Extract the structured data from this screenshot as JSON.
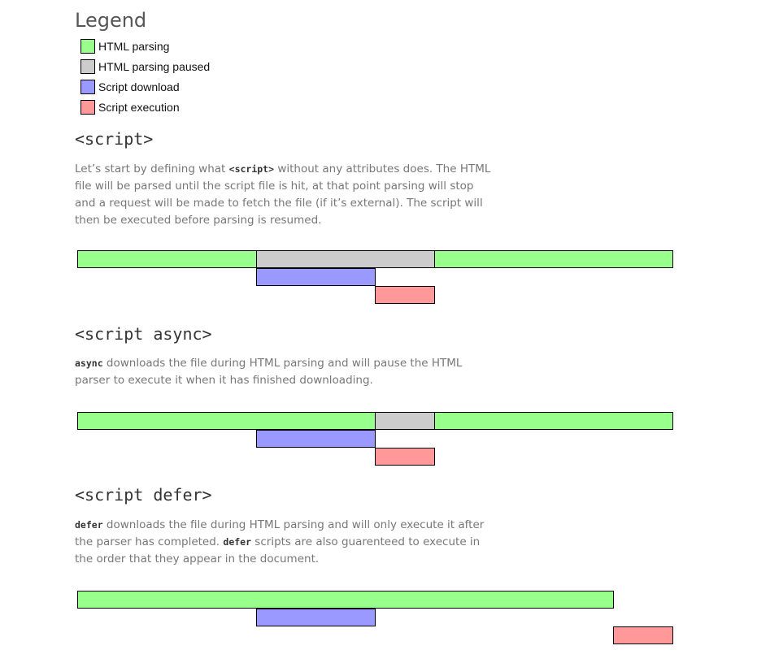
{
  "legend": {
    "title": "Legend",
    "items": [
      {
        "key": "parsing",
        "label": "HTML parsing",
        "color": "#99ff8c"
      },
      {
        "key": "paused",
        "label": "HTML parsing paused",
        "color": "#cccccc"
      },
      {
        "key": "download",
        "label": "Script download",
        "color": "#9999ff"
      },
      {
        "key": "execution",
        "label": "Script execution",
        "color": "#ff9999"
      }
    ]
  },
  "sections": [
    {
      "heading": "<script>",
      "description": [
        {
          "text": "Let’s start by defining what "
        },
        {
          "code": "<script>"
        },
        {
          "text": " without any attributes does. The HTML file will be parsed until the script file is hit, at that point parsing will stop and a request will be made to fetch the file (if it’s external). The script will then be executed before parsing is resumed."
        }
      ],
      "timeline": [
        {
          "kind": "parsing",
          "start": 0,
          "end": 30
        },
        {
          "kind": "paused",
          "start": 30,
          "end": 60
        },
        {
          "kind": "parsing",
          "start": 60,
          "end": 100
        },
        {
          "kind": "download",
          "start": 30,
          "end": 50
        },
        {
          "kind": "execution",
          "start": 50,
          "end": 60
        }
      ]
    },
    {
      "heading": "<script async>",
      "description": [
        {
          "code": "async"
        },
        {
          "text": " downloads the file during HTML parsing and will pause the HTML parser to execute it when it has finished downloading."
        }
      ],
      "timeline": [
        {
          "kind": "parsing",
          "start": 0,
          "end": 50
        },
        {
          "kind": "paused",
          "start": 50,
          "end": 60
        },
        {
          "kind": "parsing",
          "start": 60,
          "end": 100
        },
        {
          "kind": "download",
          "start": 30,
          "end": 50
        },
        {
          "kind": "execution",
          "start": 50,
          "end": 60
        }
      ]
    },
    {
      "heading": "<script defer>",
      "description": [
        {
          "code": "defer"
        },
        {
          "text": " downloads the file during HTML parsing and will only execute it after the parser has completed. "
        },
        {
          "code": "defer"
        },
        {
          "text": " scripts are also guarenteed to execute in the order that they appear in the document."
        }
      ],
      "timeline": [
        {
          "kind": "parsing",
          "start": 0,
          "end": 90
        },
        {
          "kind": "download",
          "start": 30,
          "end": 50
        },
        {
          "kind": "execution",
          "start": 90,
          "end": 100
        }
      ]
    }
  ]
}
